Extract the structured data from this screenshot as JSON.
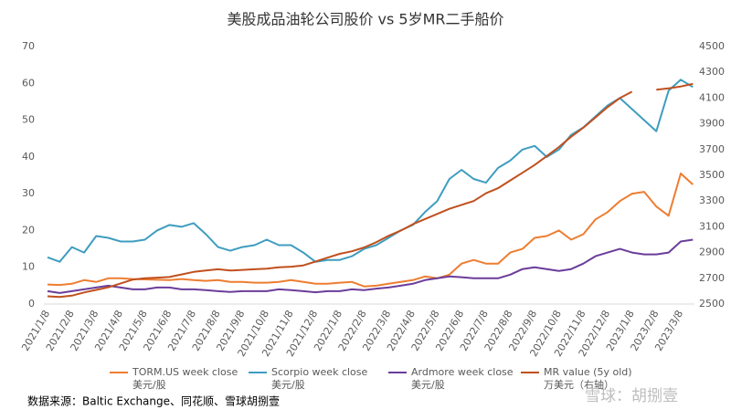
{
  "chart_data": {
    "type": "line",
    "title": "美股成品油轮公司股价 vs 5岁MR二手船价",
    "categories": [
      "2021/1/8",
      null,
      "2021/2/8",
      null,
      "2021/3/8",
      null,
      "2021/4/8",
      null,
      "2021/5/8",
      null,
      "2021/6/8",
      null,
      "2021/7/8",
      null,
      "2021/8/8",
      null,
      "2021/9/8",
      null,
      "2021/10/8",
      null,
      "2021/11/8",
      null,
      "2021/12/8",
      null,
      "2022/1/8",
      null,
      "2022/2/8",
      null,
      "2022/3/8",
      null,
      "2022/4/8",
      null,
      "2022/5/8",
      null,
      "2022/6/8",
      null,
      "2022/7/8",
      null,
      "2022/8/8",
      null,
      "2022/9/8",
      null,
      "2022/10/8",
      null,
      "2022/11/8",
      null,
      "2022/12/8",
      null,
      "2023/1/8",
      null,
      "2023/2/8",
      null,
      "2023/3/8",
      null
    ],
    "series": [
      {
        "name": "TORM.US week close",
        "unit": "美元/股",
        "color": "#ed7d31",
        "values": [
          5.3,
          5.2,
          5.5,
          6.5,
          6,
          7,
          7,
          6.8,
          6.7,
          6.6,
          6.5,
          6.8,
          6.5,
          6.3,
          6.5,
          6,
          6,
          5.8,
          5.8,
          6,
          6.5,
          6,
          5.5,
          5.5,
          5.8,
          6,
          4.8,
          5,
          5.5,
          6,
          6.5,
          7.5,
          7,
          8,
          11,
          12,
          11,
          11,
          14,
          15,
          18,
          18.5,
          20,
          17.5,
          19,
          23,
          25,
          28,
          30,
          30.5,
          26.5,
          24,
          35.5,
          32.5
        ]
      },
      {
        "name": "Scorpio week close",
        "unit": "美元/股",
        "color": "#3e9dc0",
        "values": [
          12.7,
          11.5,
          15.5,
          14,
          18.5,
          18,
          17,
          17,
          17.5,
          20,
          21.5,
          21,
          22,
          19,
          15.5,
          14.5,
          15.5,
          16,
          17.5,
          16,
          16,
          14,
          11.5,
          12,
          12,
          13,
          15,
          16,
          18,
          20,
          21.5,
          25,
          28,
          34,
          36.5,
          34,
          33,
          37,
          39,
          42,
          43,
          40,
          42,
          46,
          48,
          51,
          54,
          56,
          53,
          50,
          47,
          58,
          61,
          59
        ]
      },
      {
        "name": "Ardmore week close",
        "unit": "美元/股",
        "color": "#6a3d9a",
        "values": [
          3.5,
          3,
          3.5,
          4,
          4.5,
          5,
          4.5,
          4,
          4,
          4.5,
          4.5,
          4,
          4,
          3.8,
          3.5,
          3.3,
          3.5,
          3.5,
          3.5,
          4,
          3.8,
          3.5,
          3.2,
          3.5,
          3.5,
          4,
          3.8,
          4.2,
          4.5,
          5,
          5.5,
          6.5,
          7,
          7.5,
          7.3,
          7,
          7,
          7,
          8,
          9.5,
          10,
          9.5,
          9,
          9.5,
          11,
          13,
          14,
          15,
          14,
          13.5,
          13.5,
          14,
          17,
          17.5
        ]
      },
      {
        "name": "MR value (5y old)",
        "unit": "万美元（右轴）",
        "color": "#c0501e",
        "axis": "y2",
        "values": [
          2560,
          2555,
          2565,
          2590,
          2610,
          2630,
          2660,
          2690,
          2700,
          2705,
          2710,
          2730,
          2750,
          2760,
          2770,
          2760,
          2765,
          2770,
          2775,
          2785,
          2790,
          2800,
          2830,
          2860,
          2890,
          2910,
          2940,
          2980,
          3030,
          3070,
          3120,
          3160,
          3200,
          3240,
          3270,
          3300,
          3360,
          3400,
          3460,
          3520,
          3580,
          3650,
          3720,
          3800,
          3870,
          3950,
          4030,
          4100,
          4150,
          null,
          4165,
          4175,
          4190,
          4210
        ]
      }
    ],
    "ylim": [
      0,
      70
    ],
    "yticks": [
      0,
      10,
      20,
      30,
      40,
      50,
      60,
      70
    ],
    "y2lim": [
      2500,
      4500
    ],
    "y2ticks": [
      2500,
      2700,
      2900,
      3100,
      3300,
      3500,
      3700,
      3900,
      4100,
      4300,
      4500
    ],
    "grid": false,
    "legend": "bottom",
    "source": "数据来源：Baltic Exchange、同花顺、雪球胡捌壹",
    "watermark": "雪球：胡捌壹"
  }
}
